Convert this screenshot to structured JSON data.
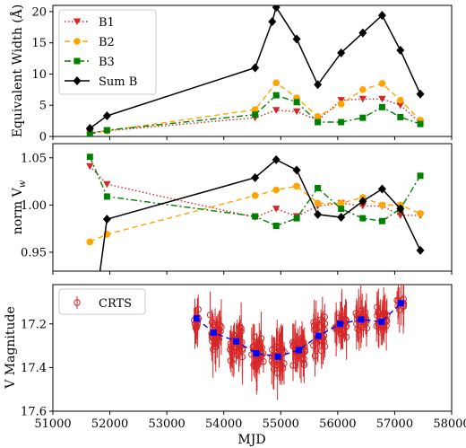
{
  "chart_data": [
    {
      "type": "line",
      "ylabel": "Equivalent Width (Å)",
      "xlabel": "",
      "ylim": [
        0,
        21
      ],
      "xlim": [
        51000,
        58000
      ],
      "yticks": [
        "0",
        "5",
        "10",
        "15",
        "20"
      ],
      "grid": false,
      "legend_position": "upper-left",
      "series": [
        {
          "name": "B1",
          "color": "#d62728",
          "marker": "triangle-down",
          "linestyle": "dotted",
          "x": [
            51650,
            51950,
            54550,
            54920,
            55280,
            55650,
            56060,
            56440,
            56780,
            57100,
            57450
          ],
          "y": [
            0.6,
            0.9,
            3.0,
            4.2,
            4.0,
            2.6,
            5.8,
            6.0,
            6.0,
            5.0,
            2.2
          ]
        },
        {
          "name": "B2",
          "color": "#ffa500",
          "marker": "circle",
          "linestyle": "dashed",
          "x": [
            51650,
            51950,
            54550,
            54920,
            55280,
            55650,
            56060,
            56440,
            56780,
            57100,
            57450
          ],
          "y": [
            0.5,
            0.9,
            4.3,
            8.6,
            6.2,
            3.2,
            5.2,
            7.5,
            8.5,
            5.8,
            2.6
          ]
        },
        {
          "name": "B3",
          "color": "#008000",
          "marker": "square",
          "linestyle": "dashdot",
          "x": [
            51650,
            51950,
            54550,
            54920,
            55280,
            55650,
            56060,
            56440,
            56780,
            57100,
            57450
          ],
          "y": [
            0.4,
            1.0,
            3.5,
            6.6,
            5.5,
            2.3,
            2.3,
            3.0,
            4.7,
            3.1,
            2.0
          ]
        },
        {
          "name": "Sum B",
          "color": "#000000",
          "marker": "diamond",
          "linestyle": "solid",
          "x": [
            51650,
            51950,
            54550,
            54850,
            54920,
            55280,
            55650,
            56060,
            56440,
            56780,
            57100,
            57450
          ],
          "y": [
            1.3,
            3.3,
            11.0,
            18.4,
            20.7,
            15.6,
            8.3,
            13.4,
            16.6,
            19.4,
            13.8,
            6.8
          ]
        }
      ]
    },
    {
      "type": "line",
      "ylabel": "norm V",
      "ylabel_sub": "w",
      "xlabel": "",
      "ylim": [
        0.93,
        1.065
      ],
      "xlim": [
        51000,
        58000
      ],
      "yticks": [
        "0.95",
        "1.00",
        "1.05"
      ],
      "grid": false,
      "series": [
        {
          "color": "#d62728",
          "marker": "triangle-down",
          "linestyle": "dotted",
          "x": [
            51650,
            51950,
            54550,
            54920,
            55280,
            55650,
            56060,
            56440,
            56780,
            57100,
            57450
          ],
          "y": [
            1.041,
            1.022,
            0.987,
            0.996,
            0.988,
            0.999,
            1.002,
            0.999,
            0.999,
            0.989,
            0.989
          ]
        },
        {
          "color": "#ffa500",
          "marker": "circle",
          "linestyle": "dashed",
          "x": [
            51650,
            51950,
            54550,
            54920,
            55280,
            55650,
            56060,
            56440,
            56780,
            57100,
            57450
          ],
          "y": [
            0.961,
            0.969,
            1.01,
            1.016,
            1.02,
            1.002,
            1.002,
            1.008,
            1.0,
            1.0,
            0.991
          ]
        },
        {
          "color": "#008000",
          "marker": "square",
          "linestyle": "dashdot",
          "x": [
            51650,
            51950,
            54550,
            54920,
            55280,
            55650,
            56060,
            56440,
            56780,
            57100,
            57450
          ],
          "y": [
            1.051,
            1.009,
            0.988,
            0.978,
            0.986,
            1.018,
            0.996,
            0.986,
            0.983,
            0.996,
            1.031
          ]
        },
        {
          "color": "#000000",
          "marker": "diamond",
          "linestyle": "solid",
          "x": [
            51650,
            51950,
            54550,
            54920,
            55280,
            55650,
            56060,
            56440,
            56780,
            57100,
            57450
          ],
          "y": [
            0.85,
            0.985,
            1.029,
            1.048,
            1.037,
            0.99,
            0.987,
            1.004,
            1.017,
            0.996,
            0.952
          ]
        }
      ]
    },
    {
      "type": "scatter",
      "ylabel": "V Magnitude",
      "xlabel": "MJD",
      "ylim": [
        17.6,
        17.02
      ],
      "xlim": [
        51000,
        58000
      ],
      "yticks": [
        "17.2",
        "17.4",
        "17.6"
      ],
      "xticks": [
        "51000",
        "52000",
        "53000",
        "54000",
        "55000",
        "56000",
        "57000",
        "58000"
      ],
      "grid": false,
      "legend_position": "upper-left",
      "series": [
        {
          "name": "CRTS",
          "color": "#d62728",
          "marker": "open-circle",
          "error_bars": true,
          "clusters": [
            {
              "x_center": 53520,
              "x_spread": 50,
              "y_mean": 17.18,
              "y_spread": 0.06,
              "n": 10
            },
            {
              "x_center": 53850,
              "x_spread": 110,
              "y_mean": 17.25,
              "y_spread": 0.09,
              "n": 28
            },
            {
              "x_center": 54220,
              "x_spread": 110,
              "y_mean": 17.29,
              "y_spread": 0.08,
              "n": 28
            },
            {
              "x_center": 54590,
              "x_spread": 110,
              "y_mean": 17.34,
              "y_spread": 0.08,
              "n": 28
            },
            {
              "x_center": 54950,
              "x_spread": 110,
              "y_mean": 17.35,
              "y_spread": 0.09,
              "n": 30
            },
            {
              "x_center": 55320,
              "x_spread": 110,
              "y_mean": 17.32,
              "y_spread": 0.08,
              "n": 28
            },
            {
              "x_center": 55680,
              "x_spread": 110,
              "y_mean": 17.26,
              "y_spread": 0.09,
              "n": 28
            },
            {
              "x_center": 56050,
              "x_spread": 110,
              "y_mean": 17.2,
              "y_spread": 0.07,
              "n": 26
            },
            {
              "x_center": 56420,
              "x_spread": 100,
              "y_mean": 17.18,
              "y_spread": 0.06,
              "n": 24
            },
            {
              "x_center": 56780,
              "x_spread": 100,
              "y_mean": 17.19,
              "y_spread": 0.06,
              "n": 24
            },
            {
              "x_center": 57100,
              "x_spread": 60,
              "y_mean": 17.11,
              "y_spread": 0.04,
              "n": 10
            }
          ]
        },
        {
          "color": "#0000ff",
          "marker": "square",
          "linestyle": "dashed",
          "x": [
            53520,
            53820,
            54220,
            54570,
            54950,
            55320,
            55660,
            56040,
            56410,
            56770,
            57110
          ],
          "y": [
            17.175,
            17.24,
            17.28,
            17.335,
            17.35,
            17.32,
            17.255,
            17.2,
            17.18,
            17.19,
            17.105
          ]
        }
      ]
    }
  ]
}
